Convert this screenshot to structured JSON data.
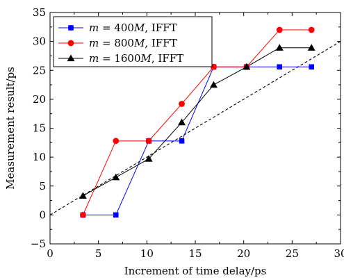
{
  "chart_data": {
    "type": "line",
    "xlabel": "Increment of time delay/ps",
    "ylabel": "Measurement result/ps",
    "xlim": [
      0,
      30
    ],
    "ylim": [
      -5,
      35
    ],
    "xticks": [
      0,
      5,
      10,
      15,
      20,
      25,
      30
    ],
    "yticks": [
      -5,
      0,
      5,
      10,
      15,
      20,
      25,
      30,
      35
    ],
    "x_tick_labels": [
      "0",
      "5",
      "10",
      "15",
      "20",
      "25",
      "30"
    ],
    "y_tick_labels": [
      "−5",
      "0",
      "5",
      "10",
      "15",
      "20",
      "25",
      "30",
      "35"
    ],
    "grid": false,
    "legend_position": "top-left",
    "series": [
      {
        "name": "m = 400M, IFFT",
        "color": "#0000ff",
        "marker": "square",
        "x": [
          3.4,
          6.8,
          10.2,
          13.6,
          16.9,
          20.3,
          23.7,
          27.0
        ],
        "y": [
          0.0,
          0.0,
          12.8,
          12.8,
          25.6,
          25.6,
          25.6,
          25.6
        ]
      },
      {
        "name": "m = 800M, IFFT",
        "color": "#ff0000",
        "marker": "circle",
        "x": [
          3.4,
          6.8,
          10.2,
          13.6,
          16.9,
          20.3,
          23.7,
          27.0
        ],
        "y": [
          0.0,
          12.8,
          12.8,
          19.2,
          25.6,
          25.6,
          32.0,
          32.0
        ]
      },
      {
        "name": "m = 1600M, IFFT",
        "color": "#000000",
        "marker": "triangle",
        "x": [
          3.4,
          6.8,
          10.2,
          13.6,
          16.9,
          20.3,
          23.7,
          27.0
        ],
        "y": [
          3.3,
          6.5,
          9.7,
          16.0,
          22.5,
          25.6,
          28.9,
          28.9
        ]
      }
    ],
    "reference_line": {
      "style": "dashed",
      "color": "#000000",
      "x": [
        0,
        30
      ],
      "y": [
        0,
        30
      ]
    },
    "legend_entries": [
      {
        "var": "m",
        "eq": " = ",
        "val": "400",
        "unit": "M",
        "suffix": ", IFFT"
      },
      {
        "var": "m",
        "eq": " = ",
        "val": "800",
        "unit": "M",
        "suffix": ", IFFT"
      },
      {
        "var": "m",
        "eq": " = ",
        "val": "1600",
        "unit": "M",
        "suffix": ", IFFT"
      }
    ]
  }
}
